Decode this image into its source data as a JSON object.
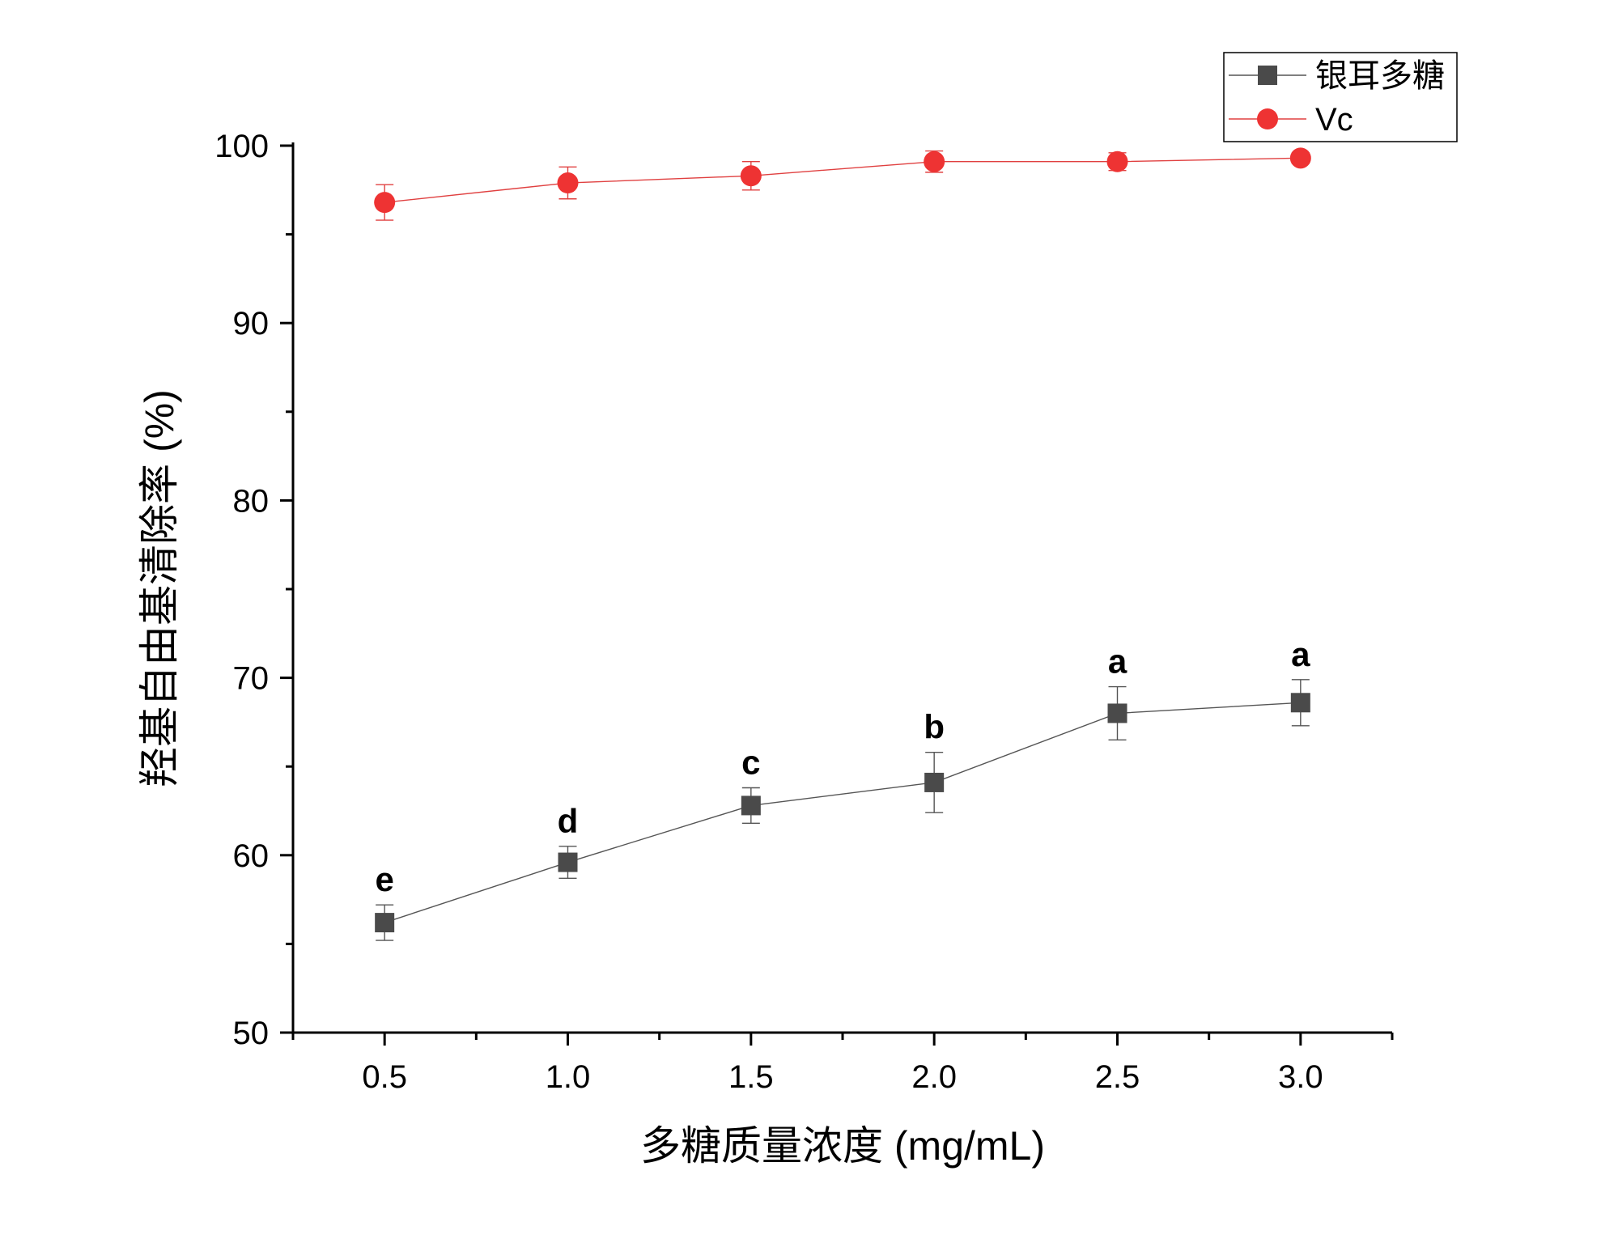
{
  "chart_data": {
    "type": "line",
    "xlabel": "多糖质量浓度 (mg/mL)",
    "ylabel": "羟基自由基清除率 (%)",
    "xlim": [
      0.25,
      3.25
    ],
    "ylim": [
      50,
      100
    ],
    "xticks": [
      "0.5",
      "1.0",
      "1.5",
      "2.0",
      "2.5",
      "3.0"
    ],
    "yticks": [
      "50",
      "60",
      "70",
      "80",
      "90",
      "100"
    ],
    "x": [
      0.5,
      1.0,
      1.5,
      2.0,
      2.5,
      3.0
    ],
    "grid": false,
    "legend_position": "top-right",
    "series": [
      {
        "name": "银耳多糖",
        "marker": "square",
        "color": "#4a4a4a",
        "values": [
          56.2,
          59.6,
          62.8,
          64.1,
          68.0,
          68.6
        ],
        "errors": [
          1.0,
          0.9,
          1.0,
          1.7,
          1.5,
          1.3
        ],
        "labels": [
          "e",
          "d",
          "c",
          "b",
          "a",
          "a"
        ]
      },
      {
        "name": "Vc",
        "marker": "circle",
        "color": "#ee3333",
        "values": [
          96.8,
          97.9,
          98.3,
          99.1,
          99.1,
          99.3
        ],
        "errors": [
          1.0,
          0.9,
          0.8,
          0.6,
          0.5,
          0.3
        ],
        "labels": []
      }
    ]
  }
}
